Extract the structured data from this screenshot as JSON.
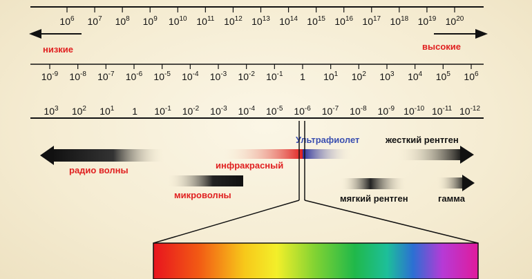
{
  "frequency_scale": {
    "exponents": [
      "6",
      "7",
      "8",
      "9",
      "10",
      "11",
      "12",
      "13",
      "14",
      "15",
      "16",
      "17",
      "18",
      "19",
      "20"
    ],
    "base": "10"
  },
  "direction": {
    "low_label": "низкие",
    "high_label": "высокие"
  },
  "energy_scale": {
    "ticks": [
      {
        "base": "10",
        "exp": "-9"
      },
      {
        "base": "10",
        "exp": "-8"
      },
      {
        "base": "10",
        "exp": "-7"
      },
      {
        "base": "10",
        "exp": "-6"
      },
      {
        "base": "10",
        "exp": "-5"
      },
      {
        "base": "10",
        "exp": "-4"
      },
      {
        "base": "10",
        "exp": "-3"
      },
      {
        "base": "10",
        "exp": "-2"
      },
      {
        "base": "10",
        "exp": "-1"
      },
      {
        "base": "1",
        "exp": ""
      },
      {
        "base": "10",
        "exp": "1"
      },
      {
        "base": "10",
        "exp": "2"
      },
      {
        "base": "10",
        "exp": "3"
      },
      {
        "base": "10",
        "exp": "4"
      },
      {
        "base": "10",
        "exp": "5"
      },
      {
        "base": "10",
        "exp": "6"
      }
    ]
  },
  "wavelength_scale": {
    "ticks": [
      {
        "base": "10",
        "exp": "3"
      },
      {
        "base": "10",
        "exp": "2"
      },
      {
        "base": "10",
        "exp": "1"
      },
      {
        "base": "1",
        "exp": ""
      },
      {
        "base": "10",
        "exp": "-1"
      },
      {
        "base": "10",
        "exp": "-2"
      },
      {
        "base": "10",
        "exp": "-3"
      },
      {
        "base": "10",
        "exp": "-4"
      },
      {
        "base": "10",
        "exp": "-5"
      },
      {
        "base": "10",
        "exp": "-6"
      },
      {
        "base": "10",
        "exp": "-7"
      },
      {
        "base": "10",
        "exp": "-8"
      },
      {
        "base": "10",
        "exp": "-9"
      },
      {
        "base": "10",
        "exp": "-10"
      },
      {
        "base": "10",
        "exp": "-11"
      },
      {
        "base": "10",
        "exp": "-12"
      }
    ]
  },
  "bands": {
    "radio": "радио волны",
    "infrared": "инфракрасный",
    "ultraviolet": "Ультрафиолет",
    "hard_xray": "жесткий рентген",
    "microwave": "микроволны",
    "soft_xray": "мягкий рентген",
    "gamma": "гамма"
  },
  "colors": {
    "low_high_text": "#e02020",
    "band_red_text": "#e02020",
    "uv_text": "#3a4fb0",
    "dark_text": "#111111"
  }
}
